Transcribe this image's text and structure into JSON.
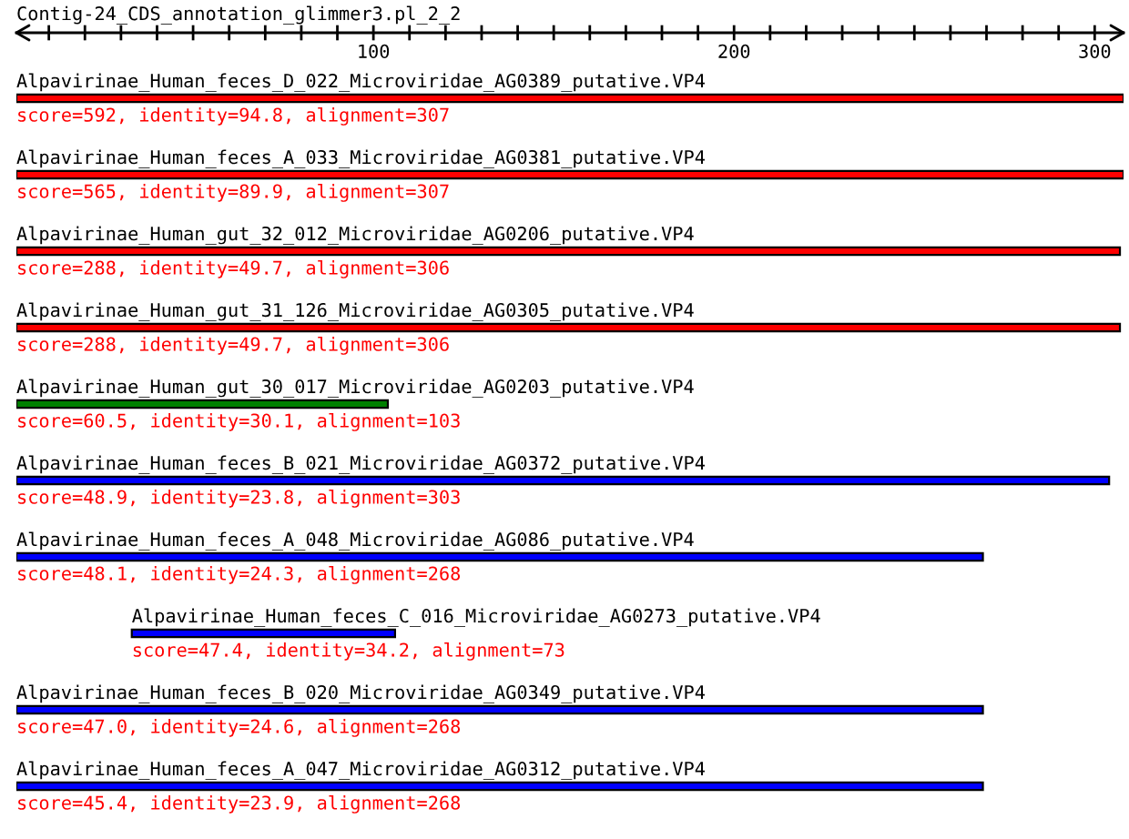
{
  "chart_data": {
    "type": "bar",
    "orientation": "horizontal",
    "title": "Contig-24_CDS_annotation_glimmer3.pl_2_2",
    "categories": [
      "Alpavirinae_Human_feces_D_022_Microviridae_AG0389_putative.VP4",
      "Alpavirinae_Human_feces_A_033_Microviridae_AG0381_putative.VP4",
      "Alpavirinae_Human_gut_32_012_Microviridae_AG0206_putative.VP4",
      "Alpavirinae_Human_gut_31_126_Microviridae_AG0305_putative.VP4",
      "Alpavirinae_Human_gut_30_017_Microviridae_AG0203_putative.VP4",
      "Alpavirinae_Human_feces_B_021_Microviridae_AG0372_putative.VP4",
      "Alpavirinae_Human_feces_A_048_Microviridae_AG086_putative.VP4",
      "Alpavirinae_Human_feces_C_016_Microviridae_AG0273_putative.VP4",
      "Alpavirinae_Human_feces_B_020_Microviridae_AG0349_putative.VP4",
      "Alpavirinae_Human_feces_A_047_Microviridae_AG0312_putative.VP4"
    ],
    "base": [
      1,
      1,
      1,
      1,
      1,
      1,
      1,
      33,
      1,
      1
    ],
    "values": [
      307,
      307,
      306,
      306,
      103,
      303,
      268,
      73,
      268,
      268
    ],
    "colors": [
      "#ff0000",
      "#ff0000",
      "#ff0000",
      "#ff0000",
      "#008000",
      "#0000ff",
      "#0000ff",
      "#0000ff",
      "#0000ff",
      "#0000ff"
    ],
    "value_labels": [
      "score=592, identity=94.8, alignment=307",
      "score=565, identity=89.9, alignment=307",
      "score=288, identity=49.7, alignment=306",
      "score=288, identity=49.7, alignment=306",
      "score=60.5, identity=30.1, alignment=103",
      "score=48.9, identity=23.8, alignment=303",
      "score=48.1, identity=24.3, alignment=268",
      "score=47.4, identity=34.2, alignment=73",
      "score=47.0, identity=24.6, alignment=268",
      "score=45.4, identity=23.9, alignment=268"
    ],
    "xlim": [
      1,
      308
    ],
    "xticks": [
      {
        "value": 10,
        "label": null
      },
      {
        "value": 20,
        "label": null
      },
      {
        "value": 30,
        "label": null
      },
      {
        "value": 40,
        "label": null
      },
      {
        "value": 50,
        "label": null
      },
      {
        "value": 60,
        "label": null
      },
      {
        "value": 70,
        "label": null
      },
      {
        "value": 80,
        "label": null
      },
      {
        "value": 90,
        "label": null
      },
      100,
      {
        "value": 110,
        "label": null
      },
      {
        "value": 120,
        "label": null
      },
      {
        "value": 130,
        "label": null
      },
      {
        "value": 140,
        "label": null
      },
      {
        "value": 150,
        "label": null
      },
      {
        "value": 160,
        "label": null
      },
      {
        "value": 170,
        "label": null
      },
      {
        "value": 180,
        "label": null
      },
      {
        "value": 190,
        "label": null
      },
      200,
      {
        "value": 210,
        "label": null
      },
      {
        "value": 220,
        "label": null
      },
      {
        "value": 230,
        "label": null
      },
      {
        "value": 240,
        "label": null
      },
      {
        "value": 250,
        "label": null
      },
      {
        "value": 260,
        "label": null
      },
      {
        "value": 270,
        "label": null
      },
      {
        "value": 280,
        "label": null
      },
      {
        "value": 290,
        "label": null
      },
      300
    ]
  }
}
